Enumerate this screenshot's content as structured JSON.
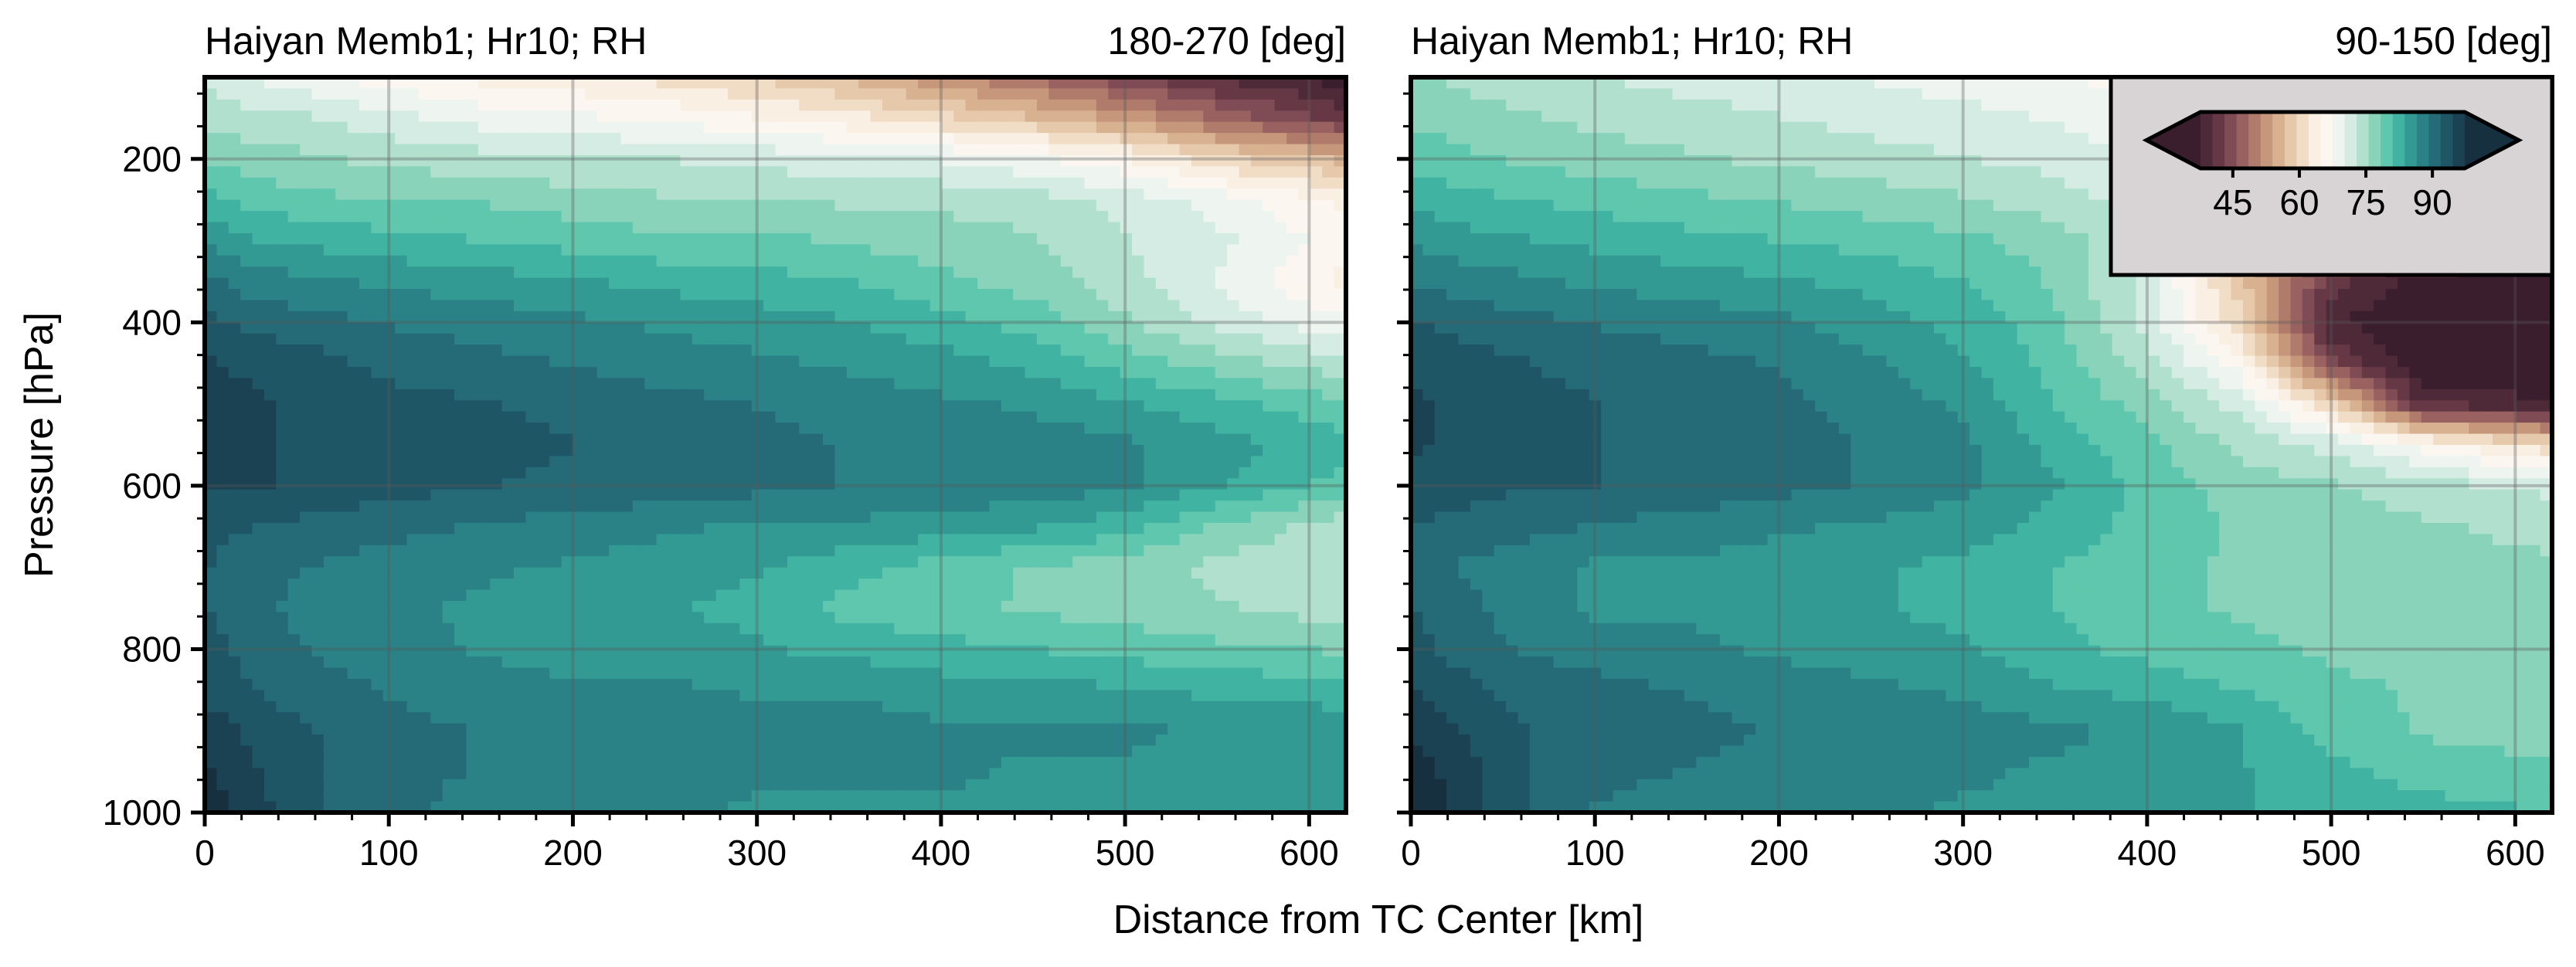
{
  "figure": {
    "xlabel": "Distance from TC Center [km]",
    "ylabel": "Pressure [hPa]"
  },
  "colorbar": {
    "ticks": [
      45,
      60,
      75,
      90
    ],
    "range": [
      35,
      100
    ],
    "extend": "both",
    "location": "upper-right of second panel",
    "colors": [
      "#3b1e2e",
      "#4e2a38",
      "#663845",
      "#7f4b54",
      "#996260",
      "#b17b6c",
      "#c7977c",
      "#d8b191",
      "#e6c8aa",
      "#f1dcc5",
      "#f9efe3",
      "#fbf6ef",
      "#eef5f1",
      "#d4ece3",
      "#b1e0cf",
      "#8ad3bb",
      "#5fc7ad",
      "#41b3a2",
      "#329a93",
      "#2a8286",
      "#246b77",
      "#1f5666",
      "#1b4253",
      "#17303f"
    ]
  },
  "chart_data": [
    {
      "type": "contourf",
      "title": "Haiyan Memb1; Hr10; RH",
      "subtitle": "180-270 [deg]",
      "xlabel": "Distance from TC Center [km]",
      "ylabel": "Pressure [hPa]",
      "xlim": [
        0,
        620
      ],
      "ylim": [
        1000,
        100
      ],
      "xticks": [
        0,
        100,
        200,
        300,
        400,
        500,
        600
      ],
      "yticks": [
        200,
        400,
        600,
        800,
        1000
      ],
      "grid": true,
      "x": [
        0,
        25,
        60,
        100,
        150,
        200,
        250,
        300,
        350,
        400,
        450,
        500,
        550,
        620
      ],
      "y": [
        100,
        150,
        200,
        250,
        300,
        350,
        400,
        450,
        500,
        550,
        600,
        650,
        700,
        750,
        800,
        850,
        900,
        950,
        1000
      ],
      "z": [
        [
          72,
          70,
          68,
          66,
          64,
          63,
          61,
          59,
          56,
          52,
          48,
          44,
          40,
          36
        ],
        [
          75,
          74,
          73,
          71,
          69,
          68,
          67,
          65,
          63,
          60,
          57,
          53,
          48,
          42
        ],
        [
          78,
          77,
          76,
          75,
          74,
          73,
          73,
          72,
          71,
          70,
          68,
          65,
          60,
          56
        ],
        [
          82,
          80,
          79,
          78,
          78,
          77,
          76,
          76,
          75,
          75,
          74,
          72,
          69,
          64
        ],
        [
          86,
          84,
          83,
          82,
          81,
          80,
          79,
          79,
          78,
          77,
          76,
          73,
          71,
          66
        ],
        [
          90,
          88,
          87,
          86,
          85,
          84,
          83,
          82,
          81,
          79,
          77,
          74,
          70,
          64
        ],
        [
          93,
          91,
          90,
          89,
          88,
          87,
          86,
          85,
          84,
          82,
          80,
          76,
          72,
          68
        ],
        [
          95,
          94,
          93,
          91,
          90,
          89,
          88,
          87,
          86,
          85,
          83,
          80,
          77,
          74
        ],
        [
          96,
          95,
          94,
          93,
          92,
          91,
          90,
          89,
          88,
          87,
          86,
          84,
          82,
          79
        ],
        [
          96,
          95,
          94,
          93,
          93,
          92,
          91,
          90,
          89,
          89,
          88,
          87,
          85,
          82
        ],
        [
          95,
          95,
          94,
          93,
          92,
          91,
          91,
          90,
          89,
          89,
          88,
          87,
          84,
          80
        ],
        [
          93,
          92,
          91,
          90,
          89,
          88,
          87,
          86,
          86,
          85,
          84,
          82,
          78,
          74
        ],
        [
          92,
          90,
          89,
          88,
          87,
          86,
          85,
          84,
          82,
          80,
          78,
          77,
          75,
          73
        ],
        [
          92,
          90,
          88,
          87,
          86,
          85,
          84,
          83,
          80,
          79,
          78,
          77,
          76,
          74
        ],
        [
          93,
          91,
          89,
          88,
          86,
          85,
          85,
          84,
          83,
          82,
          81,
          80,
          79,
          78
        ],
        [
          94,
          92,
          90,
          89,
          88,
          87,
          87,
          86,
          86,
          85,
          85,
          84,
          83,
          82
        ],
        [
          96,
          94,
          92,
          90,
          89,
          88,
          88,
          88,
          88,
          87,
          87,
          87,
          86,
          86
        ],
        [
          98,
          95,
          92,
          90,
          89,
          88,
          88,
          87,
          87,
          87,
          86,
          86,
          85,
          85
        ],
        [
          99,
          96,
          92,
          90,
          88,
          87,
          87,
          86,
          86,
          86,
          85,
          85,
          85,
          84
        ]
      ]
    },
    {
      "type": "contourf",
      "title": "Haiyan Memb1; Hr10; RH",
      "subtitle": "90-150 [deg]",
      "xlabel": "Distance from TC Center [km]",
      "ylabel": "Pressure [hPa]",
      "xlim": [
        0,
        620
      ],
      "ylim": [
        1000,
        100
      ],
      "xticks": [
        0,
        100,
        200,
        300,
        400,
        500,
        600
      ],
      "yticks": [
        200,
        400,
        600,
        800,
        1000
      ],
      "grid": true,
      "x": [
        0,
        25,
        60,
        100,
        150,
        200,
        250,
        300,
        350,
        400,
        450,
        500,
        550,
        620
      ],
      "y": [
        100,
        150,
        200,
        250,
        300,
        350,
        400,
        450,
        500,
        550,
        600,
        650,
        700,
        750,
        800,
        850,
        900,
        950,
        1000
      ],
      "z": [
        [
          76,
          75,
          74,
          73,
          72,
          71,
          70,
          69,
          68,
          66,
          64,
          62,
          60,
          58
        ],
        [
          78,
          77,
          76,
          75,
          74,
          73,
          72,
          71,
          70,
          68,
          65,
          62,
          60,
          58
        ],
        [
          80,
          79,
          78,
          77,
          76,
          75,
          74,
          73,
          72,
          70,
          66,
          62,
          60,
          58
        ],
        [
          83,
          82,
          81,
          80,
          79,
          78,
          77,
          76,
          74,
          72,
          64,
          60,
          58,
          56
        ],
        [
          86,
          85,
          84,
          83,
          82,
          81,
          80,
          79,
          77,
          73,
          62,
          52,
          45,
          42
        ],
        [
          89,
          88,
          87,
          86,
          85,
          84,
          83,
          81,
          78,
          72,
          58,
          42,
          36,
          35
        ],
        [
          92,
          91,
          90,
          89,
          88,
          87,
          85,
          83,
          79,
          72,
          60,
          38,
          35,
          35
        ],
        [
          94,
          93,
          92,
          91,
          90,
          89,
          87,
          84,
          80,
          74,
          66,
          44,
          35,
          35
        ],
        [
          95,
          94,
          93,
          92,
          91,
          90,
          88,
          86,
          81,
          77,
          72,
          60,
          40,
          38
        ],
        [
          95,
          94,
          93,
          92,
          91,
          90,
          89,
          87,
          83,
          79,
          75,
          72,
          66,
          60
        ],
        [
          94,
          93,
          92,
          92,
          91,
          90,
          89,
          87,
          84,
          80,
          77,
          76,
          74,
          72
        ],
        [
          92,
          91,
          90,
          89,
          88,
          87,
          86,
          85,
          83,
          80,
          78,
          77,
          76,
          75
        ],
        [
          91,
          89,
          88,
          86,
          86,
          85,
          84,
          83,
          81,
          79,
          78,
          77,
          76,
          76
        ],
        [
          92,
          90,
          88,
          86,
          86,
          85,
          84,
          83,
          81,
          79,
          78,
          77,
          77,
          76
        ],
        [
          93,
          91,
          89,
          88,
          87,
          86,
          85,
          84,
          82,
          80,
          79,
          78,
          77,
          77
        ],
        [
          95,
          93,
          91,
          90,
          89,
          88,
          87,
          86,
          84,
          83,
          81,
          79,
          78,
          77
        ],
        [
          97,
          95,
          92,
          91,
          90,
          89,
          89,
          88,
          87,
          86,
          84,
          80,
          78,
          77
        ],
        [
          99,
          96,
          92,
          90,
          89,
          88,
          88,
          87,
          86,
          85,
          84,
          82,
          80,
          79
        ],
        [
          100,
          97,
          92,
          89,
          88,
          87,
          87,
          86,
          86,
          85,
          84,
          83,
          82,
          81
        ]
      ]
    }
  ]
}
